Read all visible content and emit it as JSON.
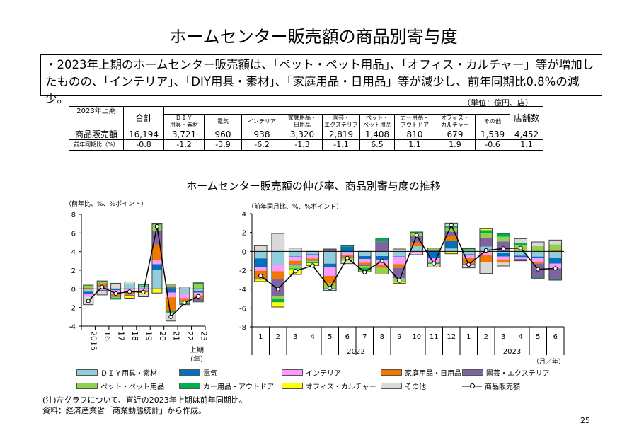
{
  "title": "ホームセンター販売額の商品別寄与度",
  "summary": "・2023年上期のホームセンター販売額は、「ペット・ペット用品」、「オフィス・カルチャー」等が増加したものの、「インテリア」、「DIY用具・素材」、「家庭用品・日用品」等が減少し、前年同期比0.8%の減少。",
  "table": {
    "unit": "（単位：億円、店）",
    "period": "2023年上期",
    "headers": [
      "合計",
      "ＤＩＹ",
      "用具・素材",
      "電気",
      "インテリア",
      "家庭用品・",
      "日用品",
      "園芸・",
      "エクステリア",
      "ペット・",
      "ペット用品",
      "カー用品・",
      "アウトドア",
      "オフィス・",
      "カルチャー",
      "その他",
      "店舗数"
    ],
    "rows": [
      {
        "label": "商品販売額",
        "values": [
          "16,194",
          "3,721",
          "960",
          "938",
          "3,320",
          "2,819",
          "1,408",
          "810",
          "679",
          "1,539",
          "4,452"
        ]
      },
      {
        "label": "前年同期比（%）",
        "values": [
          "-0.8",
          "-1.2",
          "-3.9",
          "-6.2",
          "-1.3",
          "-1.1",
          "6.5",
          "1.1",
          "1.9",
          "-0.6",
          "1.1"
        ]
      }
    ]
  },
  "chart_subtitle": "ホームセンター販売額の伸び率、商品別寄与度の推移",
  "chart_data": [
    {
      "type": "bar",
      "stacked": true,
      "ylabel": "（前年比、%、%ポイント）",
      "ylim": [
        -4,
        8
      ],
      "yticks": [
        "8",
        "6",
        "4",
        "2",
        "0",
        "-2",
        "-4"
      ],
      "categories": [
        "2015",
        "16",
        "17",
        "18",
        "19",
        "20",
        "21",
        "22",
        "23"
      ],
      "category_suffix": "上期",
      "xunit": "（年）",
      "series": [
        {
          "name": "ＤＩＹ用具・素材",
          "color": "#92CDDC",
          "values": [
            -0.3,
            0.2,
            -0.05,
            0.55,
            0.2,
            2.05,
            0,
            -0.5,
            -0.2
          ]
        },
        {
          "name": "電気",
          "color": "#0070C0",
          "values": [
            -0.25,
            0.1,
            -0.1,
            -0.05,
            0.1,
            0.6,
            -0.4,
            -0.05,
            -0.2
          ]
        },
        {
          "name": "インテリア",
          "color": "#FF99FF",
          "values": [
            -0.3,
            -0.1,
            -0.4,
            -0.15,
            -0.15,
            0.45,
            -0.5,
            -0.45,
            -0.3
          ]
        },
        {
          "name": "家庭用品・日用品",
          "color": "#F07800",
          "values": [
            0.1,
            0.3,
            -0.2,
            -0.45,
            -0.1,
            1.65,
            -1.5,
            -0.3,
            -0.3
          ]
        },
        {
          "name": "園芸・エクステリア",
          "color": "#8064A2",
          "values": [
            0,
            -0.2,
            -0.1,
            -0.1,
            -0.1,
            1.5,
            0.3,
            -0.1,
            -0.3
          ]
        },
        {
          "name": "ペット・ペット用品",
          "color": "#92D050",
          "values": [
            0.3,
            0.2,
            -0.1,
            0,
            0.1,
            0.65,
            0.2,
            -0.15,
            0.55
          ]
        },
        {
          "name": "カー用品・アウトドア",
          "color": "#00B050",
          "values": [
            0,
            0.05,
            -0.15,
            0,
            0.1,
            0.05,
            -0.15,
            -0.1,
            0.1
          ]
        },
        {
          "name": "オフィス・カルチャー",
          "color": "#FFFF00",
          "values": [
            0,
            0,
            0,
            -0.25,
            -0.2,
            -0.45,
            0,
            -0.05,
            0
          ]
        },
        {
          "name": "その他",
          "color": "#D9D9D9",
          "values": [
            -0.85,
            -0.35,
            0.6,
            0.2,
            -0.3,
            0.1,
            -0.9,
            0.2,
            -0.1
          ]
        }
      ],
      "line": {
        "name": "商品販売額",
        "values": [
          -1.3,
          0.2,
          -0.5,
          -0.3,
          -0.35,
          6.7,
          -3.0,
          -1.5,
          -0.8
        ]
      }
    },
    {
      "type": "bar",
      "stacked": true,
      "ylabel": "（前年同月比、%、%ポイント）",
      "ylim": [
        -8,
        4
      ],
      "yticks": [
        "4",
        "2",
        "0",
        "-2",
        "-4",
        "-6",
        "-8"
      ],
      "categories": [
        "1",
        "2",
        "3",
        "4",
        "5",
        "6",
        "7",
        "8",
        "9",
        "10",
        "11",
        "12",
        "1",
        "2",
        "3",
        "4",
        "5",
        "6"
      ],
      "years": [
        "2022",
        "2023"
      ],
      "xunit": "（月／年）",
      "series": [
        {
          "name": "ＤＩＹ用具・素材",
          "color": "#92CDDC",
          "values": [
            -0.75,
            -1.4,
            -0.5,
            -0.3,
            -1.3,
            -0.15,
            -0.5,
            -0.5,
            -0.5,
            0.55,
            -0.05,
            0.3,
            -0.3,
            0.5,
            -0.15,
            -0.45,
            -0.55,
            -0.7
          ]
        },
        {
          "name": "電気",
          "color": "#0070C0",
          "values": [
            -0.9,
            0,
            -0.05,
            -0.05,
            -0.4,
            0.5,
            -0.3,
            -0.4,
            -0.05,
            0,
            -0.6,
            0.8,
            -0.05,
            0,
            -0.4,
            -0.15,
            -0.1,
            -0.6
          ]
        },
        {
          "name": "インテリア",
          "color": "#FF99FF",
          "values": [
            -0.4,
            -0.7,
            -0.45,
            -0.4,
            -0.9,
            -0.25,
            -0.4,
            -0.5,
            -0.8,
            -0.15,
            -0.45,
            -0.05,
            -0.35,
            -0.35,
            -0.3,
            -0.2,
            -0.45,
            -0.5
          ]
        },
        {
          "name": "家庭用品・日用品",
          "color": "#F07800",
          "values": [
            -0.8,
            -0.85,
            -0.35,
            -0.15,
            -0.8,
            -0.2,
            -0.2,
            -0.35,
            -0.4,
            0.4,
            -0.1,
            0.55,
            -0.6,
            -0.8,
            -0.35,
            0,
            -0.2,
            0.15
          ]
        },
        {
          "name": "園芸・エクステリア",
          "color": "#8064A2",
          "values": [
            -0.1,
            -1.8,
            -0.15,
            -0.1,
            0.25,
            -0.1,
            -0.15,
            1.05,
            -1.1,
            0.7,
            0.2,
            0.45,
            -0.1,
            0.95,
            1.05,
            -0.2,
            -1.4,
            -1.1
          ]
        },
        {
          "name": "ペット・ペット用品",
          "color": "#92D050",
          "values": [
            0,
            -0.25,
            -0.3,
            -0.15,
            -0.5,
            -0.3,
            -0.2,
            -0.6,
            -0.35,
            0.25,
            0.15,
            0.4,
            0.2,
            0.5,
            0.5,
            0.7,
            0.55,
            0.6
          ]
        },
        {
          "name": "カー用品・アウトドア",
          "color": "#00B050",
          "values": [
            -0.05,
            -0.4,
            -0.1,
            -0.1,
            -0.1,
            0.1,
            -0.3,
            0.35,
            -0.1,
            0.15,
            -0.15,
            0.2,
            0.1,
            0.3,
            0.35,
            0.15,
            -0.15,
            -0.15
          ]
        },
        {
          "name": "オフィス・カルチャー",
          "color": "#FFFF00",
          "values": [
            -0.2,
            -0.5,
            -0.55,
            -0.25,
            0,
            -0.05,
            -0.1,
            -0.05,
            -0.1,
            0,
            -0.1,
            -0.2,
            0,
            0.2,
            0,
            0.05,
            0,
            0
          ]
        },
        {
          "name": "その他",
          "color": "#D9D9D9",
          "values": [
            0.6,
            1.9,
            0.35,
            0,
            -0.15,
            -0.25,
            0,
            0,
            0.25,
            -0.2,
            -0.2,
            0.3,
            -0.35,
            -1.2,
            -0.35,
            0.45,
            0.45,
            0.45
          ]
        }
      ],
      "line": {
        "name": "商品販売額",
        "values": [
          -2.6,
          -4.0,
          -2.1,
          -1.5,
          -3.9,
          -0.7,
          -2.2,
          -1.0,
          -3.1,
          1.7,
          -1.3,
          2.8,
          -1.4,
          0.1,
          0.3,
          0.35,
          -1.9,
          -1.8
        ]
      }
    }
  ],
  "legend": [
    "ＤＩＹ用具・素材",
    "電気",
    "インテリア",
    "家庭用品・日用品",
    "園芸・エクステリア",
    "ペット・ペット用品",
    "カー用品・アウトドア",
    "オフィス・カルチャー",
    "その他",
    "商品販売額"
  ],
  "notes": [
    "(注)左グラフについて、直近の2023年上期は前年同期比。",
    "資料：経済産業省「商業動態統計」から作成。"
  ],
  "page_number": "25"
}
